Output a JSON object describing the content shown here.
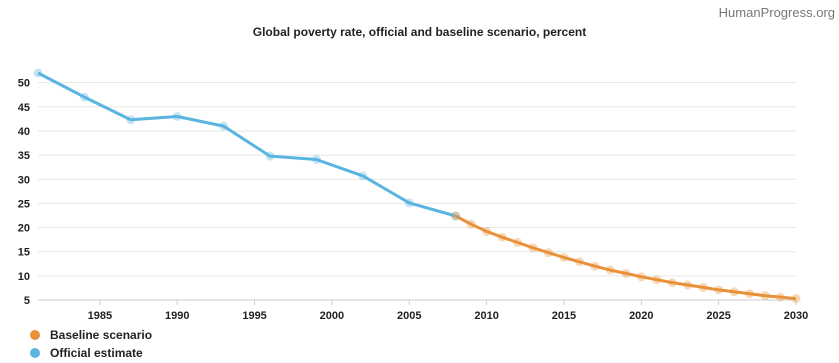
{
  "watermark": "HumanProgress.org",
  "chart_data": {
    "type": "line",
    "title": "Global poverty rate, official and baseline scenario, percent",
    "xlabel": "",
    "ylabel": "",
    "xlim": [
      1981,
      2030
    ],
    "ylim": [
      5,
      52
    ],
    "x_ticks": [
      1985,
      1990,
      1995,
      2000,
      2005,
      2010,
      2015,
      2020,
      2025,
      2030
    ],
    "y_ticks": [
      5,
      10,
      15,
      20,
      25,
      30,
      35,
      40,
      45,
      50
    ],
    "grid": true,
    "legend_position": "bottom-left",
    "series": [
      {
        "name": "Baseline scenario",
        "color": "#E8913A",
        "x": [
          2008,
          2009,
          2010,
          2011,
          2012,
          2013,
          2014,
          2015,
          2016,
          2017,
          2018,
          2019,
          2020,
          2021,
          2022,
          2023,
          2024,
          2025,
          2026,
          2027,
          2028,
          2029,
          2030
        ],
        "values": [
          22.4,
          20.7,
          19.2,
          18.0,
          16.9,
          15.8,
          14.8,
          13.8,
          12.9,
          12.0,
          11.2,
          10.5,
          9.8,
          9.2,
          8.6,
          8.1,
          7.6,
          7.1,
          6.7,
          6.3,
          5.9,
          5.6,
          5.3
        ]
      },
      {
        "name": "Official estimate",
        "color": "#5AB4E0",
        "x": [
          1981,
          1984,
          1987,
          1990,
          1993,
          1996,
          1999,
          2002,
          2005,
          2008
        ],
        "values": [
          52.0,
          47.0,
          42.3,
          43.0,
          41.0,
          34.8,
          34.1,
          30.7,
          25.1,
          22.4
        ]
      }
    ]
  }
}
